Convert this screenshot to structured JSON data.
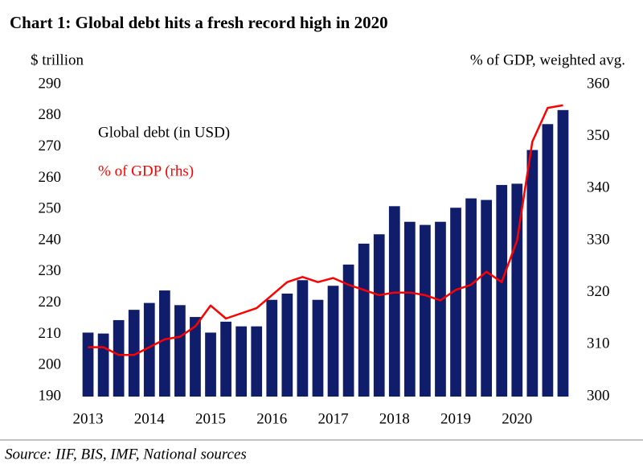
{
  "chart_data": {
    "type": "bar-line",
    "title": "Chart 1: Global debt hits a fresh record high in 2020",
    "y_label": "$ trillion",
    "y2_label": "% of GDP, weighted avg.",
    "source": "Source: IIF, BIS, IMF, National sources",
    "categories": [
      "2013",
      null,
      null,
      null,
      "2014",
      null,
      null,
      null,
      "2015",
      null,
      null,
      null,
      "2016",
      null,
      null,
      null,
      "2017",
      null,
      null,
      null,
      "2018",
      null,
      null,
      null,
      "2019",
      null,
      null,
      null,
      "2020",
      null,
      null,
      null
    ],
    "series": [
      {
        "name": "Global debt (in USD)",
        "color": "#101d6b",
        "type": "bar",
        "values": [
          210.5,
          210.2,
          214.5,
          217.8,
          220,
          224,
          219.3,
          215.5,
          210.5,
          214,
          212.5,
          212.5,
          221,
          223,
          227.3,
          221,
          225.5,
          232.3,
          239,
          242,
          251,
          246,
          245,
          246,
          250.5,
          253.5,
          253,
          257.8,
          258.2,
          269,
          277.3,
          281.8
        ]
      },
      {
        "name": "% of GDP (rhs)",
        "color": "#ff0000",
        "type": "line",
        "axis": "y2",
        "values": [
          309.5,
          309.5,
          308,
          308,
          309.5,
          311,
          311.5,
          313.5,
          317.5,
          315,
          316,
          317,
          319.5,
          322,
          323,
          322,
          322.8,
          321.5,
          320.5,
          319.5,
          320,
          320,
          319.5,
          318.5,
          320.5,
          321.5,
          324,
          322,
          330,
          349,
          355.5,
          356
        ]
      }
    ],
    "ylim": [
      190,
      290
    ],
    "yticks": [
      190,
      200,
      210,
      220,
      230,
      240,
      250,
      260,
      270,
      280,
      290
    ],
    "y2lim": [
      300,
      360
    ],
    "y2ticks": [
      300,
      310,
      320,
      330,
      340,
      350,
      360
    ]
  }
}
